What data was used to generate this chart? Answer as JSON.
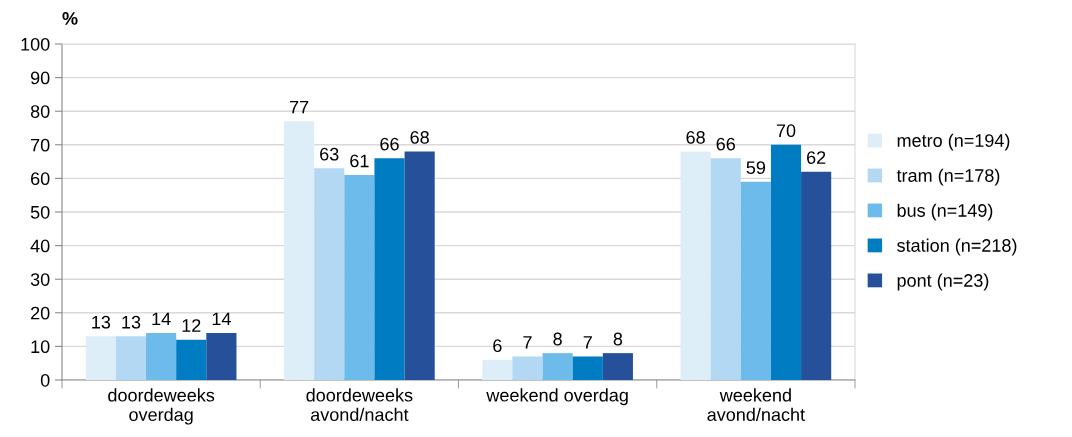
{
  "chart_data": {
    "type": "bar",
    "ylabel": "%",
    "categories": [
      "doordeweeks\noverdag",
      "doordeweeks\navond/nacht",
      "weekend overdag",
      "weekend\navond/nacht"
    ],
    "series": [
      {
        "name": "metro (n=194)",
        "color": "#deeef9",
        "values": [
          13,
          77,
          6,
          68
        ]
      },
      {
        "name": "tram (n=178)",
        "color": "#b3d8f3",
        "values": [
          13,
          63,
          7,
          66
        ]
      },
      {
        "name": "bus (n=149)",
        "color": "#6dbbea",
        "values": [
          14,
          61,
          8,
          59
        ]
      },
      {
        "name": "station (n=218)",
        "color": "#007cc2",
        "values": [
          12,
          66,
          7,
          70
        ]
      },
      {
        "name": "pont (n=23)",
        "color": "#27509b",
        "values": [
          14,
          68,
          8,
          62
        ]
      }
    ],
    "ylim": [
      0,
      100
    ],
    "yticks": [
      0,
      10,
      20,
      30,
      40,
      50,
      60,
      70,
      80,
      90,
      100
    ],
    "grid": "y",
    "legend": "right",
    "data_labels": true
  }
}
